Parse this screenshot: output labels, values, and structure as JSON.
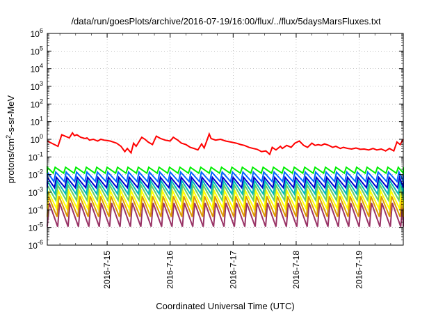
{
  "chart_data": {
    "type": "line",
    "title": "/data/run/goesPlots/archive/2016-07-19/16:00/flux/../flux/5daysMarsFluxes.txt",
    "xlabel": "Coordinated Universal Time (UTC)",
    "ylabel": "protons/cm²-s-sr-MeV",
    "ylabel_parts": {
      "pre": "protons/cm",
      "sup": "2",
      "post": "-s-sr-MeV"
    },
    "yscale": "log",
    "ylim_exp": [
      -6,
      6
    ],
    "y_ticks": [
      {
        "base": "10",
        "exp": "-6"
      },
      {
        "base": "10",
        "exp": "-5"
      },
      {
        "base": "10",
        "exp": "-4"
      },
      {
        "base": "10",
        "exp": "-3"
      },
      {
        "base": "10",
        "exp": "-2"
      },
      {
        "base": "10",
        "exp": "-1"
      },
      {
        "base": "10",
        "exp": "0"
      },
      {
        "base": "10",
        "exp": "1"
      },
      {
        "base": "10",
        "exp": "2"
      },
      {
        "base": "10",
        "exp": "3"
      },
      {
        "base": "10",
        "exp": "4"
      },
      {
        "base": "10",
        "exp": "5"
      },
      {
        "base": "10",
        "exp": "6"
      }
    ],
    "x_ticks": [
      "2016-7-15",
      "2016-7-16",
      "2016-7-17",
      "2016-7-18",
      "2016-7-19"
    ],
    "xlim_days": [
      14.05,
      19.7
    ],
    "grid": true,
    "colors": [
      "#ff0000",
      "#00ee00",
      "#0066ff",
      "#0000cc",
      "#00bbbb",
      "#66cc66",
      "#ffff00",
      "#dd9900",
      "#993366"
    ],
    "red_series": {
      "x": [
        14.05,
        14.22,
        14.28,
        14.4,
        14.45,
        14.48,
        14.52,
        14.58,
        14.65,
        14.68,
        14.72,
        14.78,
        14.85,
        14.9,
        14.95,
        15.05,
        15.15,
        15.22,
        15.28,
        15.32,
        15.38,
        15.42,
        15.46,
        15.55,
        15.6,
        15.65,
        15.72,
        15.78,
        15.85,
        15.92,
        16.0,
        16.05,
        16.12,
        16.18,
        16.25,
        16.32,
        16.38,
        16.44,
        16.5,
        16.54,
        16.58,
        16.62,
        16.65,
        16.72,
        16.8,
        16.88,
        16.96,
        17.05,
        17.12,
        17.18,
        17.25,
        17.32,
        17.38,
        17.45,
        17.52,
        17.58,
        17.62,
        17.68,
        17.75,
        17.78,
        17.85,
        17.92,
        17.98,
        18.05,
        18.12,
        18.18,
        18.25,
        18.3,
        18.35,
        18.4,
        18.45,
        18.52,
        18.58,
        18.63,
        18.7,
        18.75,
        18.82,
        18.88,
        18.95,
        19.02,
        19.08,
        19.15,
        19.22,
        19.28,
        19.35,
        19.42,
        19.48,
        19.55,
        19.6,
        19.65,
        19.7
      ],
      "y": [
        0.8,
        0.4,
        1.8,
        1.2,
        2.3,
        1.6,
        1.8,
        1.3,
        1.1,
        1.2,
        0.9,
        1.0,
        0.8,
        1.0,
        0.9,
        0.8,
        0.6,
        0.4,
        0.2,
        0.3,
        0.17,
        0.6,
        0.4,
        1.3,
        1.0,
        0.7,
        0.5,
        1.5,
        1.1,
        0.9,
        0.8,
        1.3,
        0.9,
        0.6,
        0.5,
        0.35,
        0.3,
        0.25,
        0.55,
        0.32,
        0.8,
        2.0,
        1.1,
        0.9,
        1.0,
        0.8,
        0.7,
        0.6,
        0.5,
        0.45,
        0.35,
        0.3,
        0.27,
        0.2,
        0.22,
        0.14,
        0.35,
        0.25,
        0.4,
        0.3,
        0.45,
        0.35,
        0.6,
        0.8,
        0.45,
        0.35,
        0.6,
        0.45,
        0.5,
        0.45,
        0.55,
        0.45,
        0.35,
        0.4,
        0.3,
        0.35,
        0.3,
        0.28,
        0.32,
        0.27,
        0.28,
        0.25,
        0.3,
        0.25,
        0.28,
        0.22,
        0.3,
        0.22,
        0.7,
        0.5,
        1.0
      ]
    },
    "sawtooth_series": [
      {
        "color": "#00ee00",
        "peak": 0.026,
        "trough": 0.012
      },
      {
        "color": "#0066ff",
        "peak": 0.014,
        "trough": 0.004
      },
      {
        "color": "#0000cc",
        "peak": 0.007,
        "trough": 0.0018
      },
      {
        "color": "#00bbbb",
        "peak": 0.0045,
        "trough": 0.0008
      },
      {
        "color": "#66cc66",
        "peak": 0.0025,
        "trough": 0.00035
      },
      {
        "color": "#ffff00",
        "peak": 0.0012,
        "trough": 0.00012
      },
      {
        "color": "#dd9900",
        "peak": 0.0006,
        "trough": 4e-05
      },
      {
        "color": "#993366",
        "peak": 0.00025,
        "trough": 1.1e-05
      }
    ],
    "sawtooth_period_days": 0.165
  }
}
